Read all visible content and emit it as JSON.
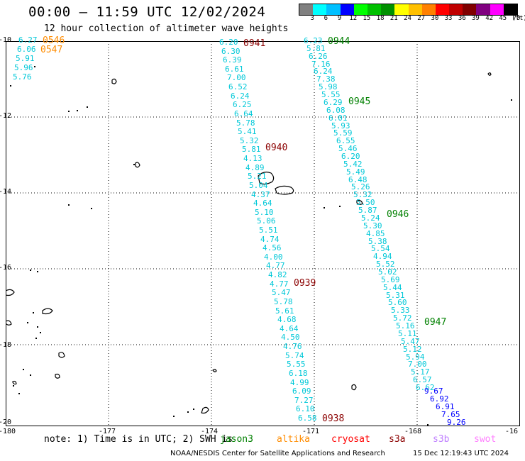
{
  "title": "00:00 – 11:59 UTC 12/02/2024",
  "subtitle": "12 hour collection of altimeter wave heights",
  "color_scale": {
    "colors": [
      "#808080",
      "#00ffff",
      "#00c0ff",
      "#0000ff",
      "#00ff00",
      "#00c000",
      "#009000",
      "#ffff00",
      "#ffc000",
      "#ff8000",
      "#ff0000",
      "#c00000",
      "#800000",
      "#800080",
      "#ff00ff",
      "#000000"
    ],
    "labels": [
      "3",
      "6",
      "9",
      "12",
      "15",
      "18",
      "21",
      "24",
      "27",
      "30",
      "33",
      "36",
      "39",
      "42",
      "45",
      "70",
      "(ft)"
    ]
  },
  "axes": {
    "lon_labels": [
      "-180",
      "-177",
      "-174",
      "-171",
      "-168",
      "-16"
    ],
    "lat_labels": [
      "-10",
      "-12",
      "-14",
      "-16",
      "-18",
      "-20"
    ],
    "grid": true
  },
  "tracks": [
    {
      "color": "#00c8d8",
      "values": [
        "6.20",
        "6.30",
        "6.39",
        "6.61",
        "7.00",
        "6.52",
        "6.24",
        "6.25",
        "6.64",
        "5.78",
        "5.41",
        "5.32",
        "5.81",
        "4.13",
        "4.89",
        "5.21",
        "5.04",
        "4.37",
        "4.64",
        "5.10",
        "5.06",
        "5.51",
        "4.74",
        "4.56",
        "4.00",
        "4.77",
        "4.82",
        "4.77",
        "5.47",
        "5.78",
        "5.61",
        "4.68",
        "4.64",
        "4.50",
        "4.76",
        "5.74",
        "5.55",
        "6.18",
        "4.99",
        "6.09",
        "7.27",
        "6.10",
        "6.58"
      ]
    },
    {
      "color": "#00c8d8",
      "values": [
        "6.23",
        "5.81",
        "6.26",
        "7.16",
        "6.24",
        "7.38",
        "5.98",
        "5.55",
        "6.29",
        "6.08",
        "6.01",
        "5.93",
        "5.59",
        "6.55",
        "5.46",
        "6.20",
        "5.42",
        "5.49",
        "6.48",
        "5.26",
        "5.32",
        "5.50",
        "5.87",
        "5.24",
        "5.30",
        "4.85",
        "5.38",
        "5.54",
        "4.94",
        "5.52",
        "5.02",
        "5.69",
        "5.44",
        "5.31",
        "5.60",
        "5.33",
        "5.72",
        "5.16",
        "5.11",
        "5.47",
        "5.12",
        "5.94",
        "7.00",
        "5.17",
        "6.57",
        "6.62"
      ]
    },
    {
      "color": "#0000ff",
      "values": [
        "9.67",
        "6.92",
        "6.91",
        "7.65",
        "9.26"
      ]
    },
    {
      "color": "#00c8d8",
      "values": [
        "6.27",
        "6.06",
        "5.91",
        "5.96",
        "5.76"
      ]
    }
  ],
  "time_labels": [
    {
      "text": "0546",
      "color": "#ff8c00"
    },
    {
      "text": "0547",
      "color": "#ff8c00"
    },
    {
      "text": "0941",
      "color": "#8b0000"
    },
    {
      "text": "0944",
      "color": "#008000"
    },
    {
      "text": "0945",
      "color": "#008000"
    },
    {
      "text": "0940",
      "color": "#8b0000"
    },
    {
      "text": "0946",
      "color": "#008000"
    },
    {
      "text": "0939",
      "color": "#8b0000"
    },
    {
      "text": "0947",
      "color": "#008000"
    },
    {
      "text": "0938",
      "color": "#8b0000"
    }
  ],
  "note": "note: 1) Time is in UTC; 2) SWH is",
  "missions": [
    {
      "name": "jason3",
      "color": "#008000"
    },
    {
      "name": "altika",
      "color": "#ff8c00"
    },
    {
      "name": "cryosat",
      "color": "#ff0000"
    },
    {
      "name": "s3a",
      "color": "#8b0000"
    },
    {
      "name": "s3b",
      "color": "#c080ff"
    },
    {
      "name": "swot",
      "color": "#ff80ff"
    }
  ],
  "credit": "NOAA/NESDIS Center for Satellite Applications and Research",
  "timestamp": "15 Dec 12:19:43 UTC 2024"
}
